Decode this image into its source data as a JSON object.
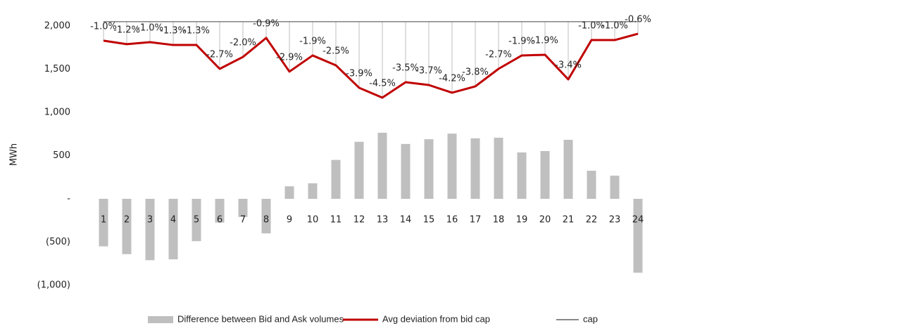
{
  "chart_data": {
    "type": "bar-line",
    "y_label": "MWh",
    "categories": [
      "1",
      "2",
      "3",
      "4",
      "5",
      "6",
      "7",
      "8",
      "9",
      "10",
      "11",
      "12",
      "13",
      "14",
      "15",
      "16",
      "17",
      "18",
      "19",
      "20",
      "21",
      "22",
      "23",
      "24"
    ],
    "series": [
      {
        "name": "Difference between Bid and Ask volumes",
        "type": "bar",
        "color": "#bfbfbf",
        "values": [
          -550,
          -640,
          -710,
          -700,
          -490,
          -275,
          -210,
          -400,
          145,
          180,
          450,
          660,
          765,
          635,
          690,
          755,
          700,
          707,
          537,
          553,
          683,
          325,
          268,
          -855
        ]
      },
      {
        "name": "Avg deviation from bid cap",
        "type": "line",
        "color": "#c00000",
        "values": [
          1830,
          1790,
          1813,
          1780,
          1780,
          1504,
          1642,
          1862,
          1472,
          1659,
          1545,
          1285,
          1171,
          1350,
          1317,
          1228,
          1301,
          1504,
          1659,
          1667,
          1382,
          1837,
          1837,
          1910
        ],
        "annotations": [
          "-1.0%",
          "-1.2%",
          "-1.0%",
          "-1.3%",
          "-1.3%",
          "-2.7%",
          "-2.0%",
          "-0.9%",
          "-2.9%",
          "-1.9%",
          "-2.5%",
          "-3.9%",
          "-4.5%",
          "-3.5%",
          "-3.7%",
          "-4.2%",
          "-3.8%",
          "-2.7%",
          "-1.9%",
          "-1.9%",
          "-3.4%",
          "-1.0%",
          "-1.0%",
          "-0.6%"
        ]
      },
      {
        "name": "cap",
        "type": "line",
        "color": "#404040",
        "values": [
          2050,
          2050,
          2050,
          2050,
          2050,
          2050,
          2050,
          2050,
          2050,
          2050,
          2050,
          2050,
          2050,
          2050,
          2050,
          2050,
          2050,
          2050,
          2050,
          2050,
          2050,
          2050,
          2050,
          2050
        ]
      }
    ],
    "ylim": [
      -1000,
      2000
    ],
    "yticks": [
      {
        "value": -1000,
        "label": "(1,000)"
      },
      {
        "value": -500,
        "label": "(500)"
      },
      {
        "value": 0,
        "label": "-"
      },
      500,
      {
        "value": 1000,
        "label": "1,000"
      },
      {
        "value": 1500,
        "label": "1,500"
      },
      {
        "value": 2000,
        "label": "2,000"
      }
    ],
    "legend": "bottom"
  }
}
